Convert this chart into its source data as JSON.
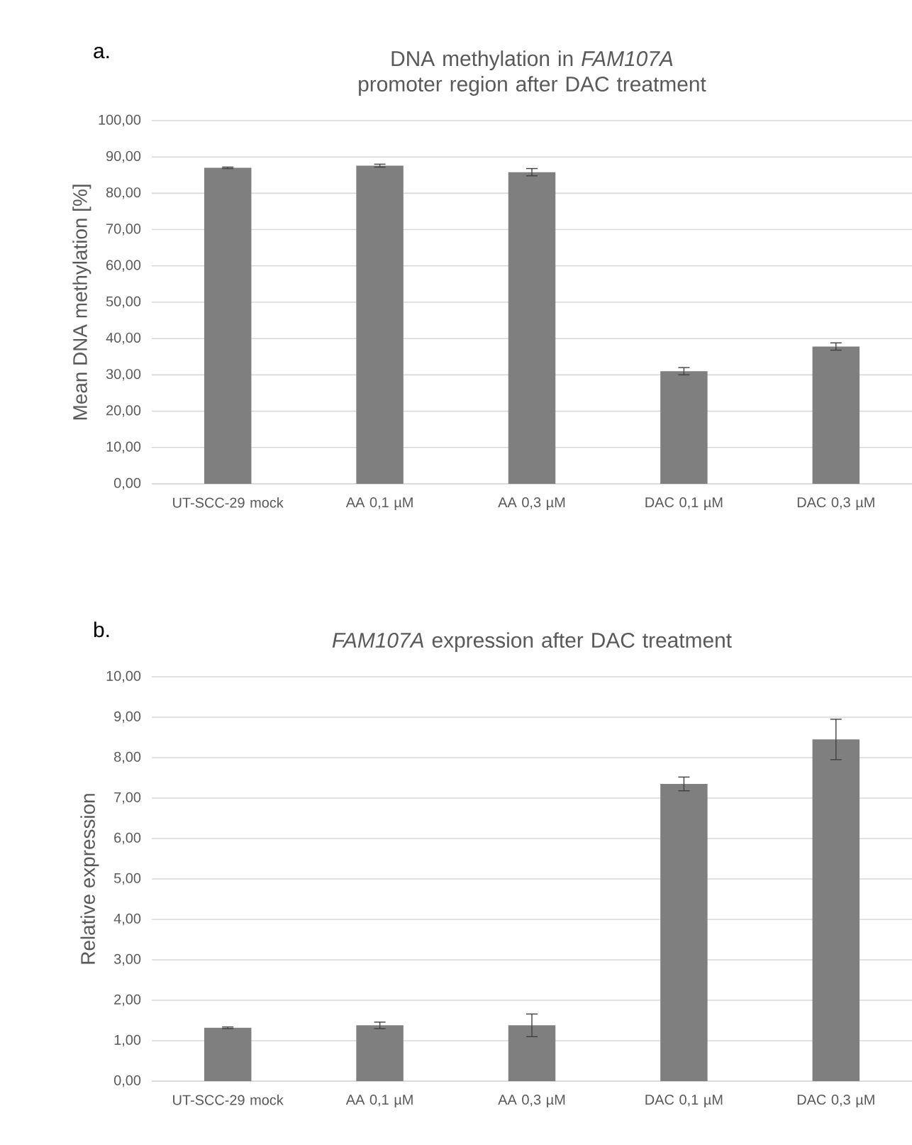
{
  "chart_data": [
    {
      "type": "bar",
      "title": "DNA methylation in *FAM107A* promoter region after DAC treatment",
      "ylabel": "Mean DNA methylation [%]",
      "categories": [
        "UT-SCC-29 mock",
        "AA 0,1 µM",
        "AA 0,3 µM",
        "DAC 0,1 µM",
        "DAC 0,3 µM"
      ],
      "values": [
        87.0,
        87.6,
        85.8,
        31.0,
        37.8
      ],
      "errors": [
        0.2,
        0.4,
        1.0,
        1.0,
        1.0
      ],
      "color": "#7f7f7f",
      "grid": "y",
      "ylim": [
        0,
        100
      ],
      "yticks": [
        {
          "value": 0,
          "label": "0,00"
        },
        {
          "value": 10,
          "label": "10,00"
        },
        {
          "value": 20,
          "label": "20,00"
        },
        {
          "value": 30,
          "label": "30,00"
        },
        {
          "value": 40,
          "label": "40,00"
        },
        {
          "value": 50,
          "label": "50,00"
        },
        {
          "value": 60,
          "label": "60,00"
        },
        {
          "value": 70,
          "label": "70,00"
        },
        {
          "value": 80,
          "label": "80,00"
        },
        {
          "value": 90,
          "label": "90,00"
        },
        {
          "value": 100,
          "label": "100,00"
        }
      ],
      "annotations": [
        "a."
      ]
    },
    {
      "type": "bar",
      "title": "*FAM107A* expression after DAC treatment",
      "ylabel": "Relative expression",
      "categories": [
        "UT-SCC-29 mock",
        "AA 0,1 µM",
        "AA 0,3 µM",
        "DAC 0,1 µM",
        "DAC 0,3 µM"
      ],
      "values": [
        1.32,
        1.38,
        1.38,
        7.35,
        8.45
      ],
      "errors": [
        0.02,
        0.08,
        0.28,
        0.17,
        0.5
      ],
      "color": "#7f7f7f",
      "grid": "y",
      "ylim": [
        0,
        10
      ],
      "yticks": [
        {
          "value": 0,
          "label": "0,00"
        },
        {
          "value": 1,
          "label": "1,00"
        },
        {
          "value": 2,
          "label": "2,00"
        },
        {
          "value": 3,
          "label": "3,00"
        },
        {
          "value": 4,
          "label": "4,00"
        },
        {
          "value": 5,
          "label": "5,00"
        },
        {
          "value": 6,
          "label": "6,00"
        },
        {
          "value": 7,
          "label": "7,00"
        },
        {
          "value": 8,
          "label": "8,00"
        },
        {
          "value": 9,
          "label": "9,00"
        },
        {
          "value": 10,
          "label": "10,00"
        }
      ],
      "annotations": [
        "b."
      ]
    }
  ]
}
